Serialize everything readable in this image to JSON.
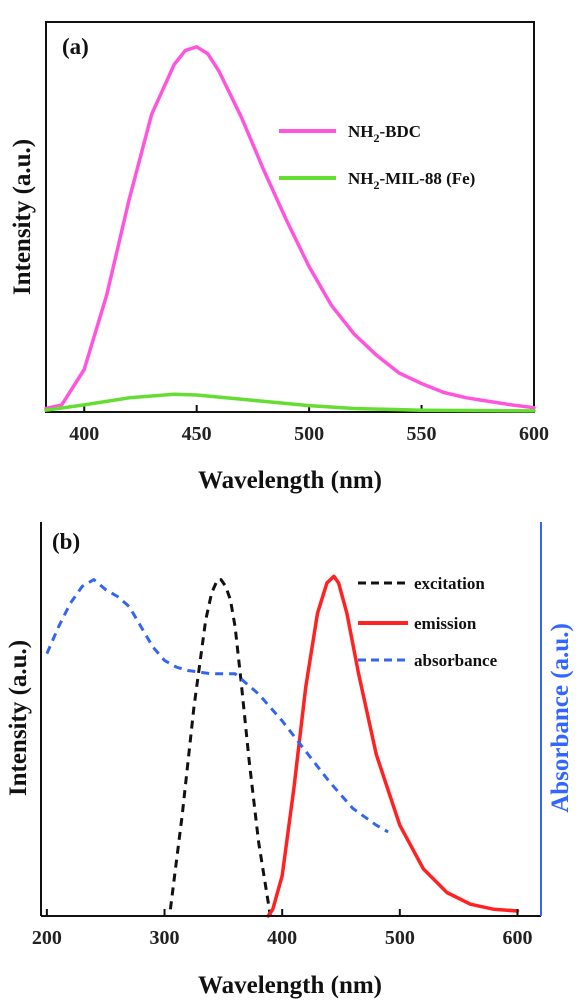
{
  "chart_data": [
    {
      "type": "line",
      "panel_label": "(a)",
      "xlabel": "Wavelength (nm)",
      "ylabel": "Intensity (a.u.)",
      "xlim": [
        383,
        600
      ],
      "x_ticks": [
        400,
        450,
        500,
        550,
        600
      ],
      "y_ticks_shown": false,
      "ylim": [
        0,
        1.1
      ],
      "grid": false,
      "legend_position": "upper-right",
      "series": [
        {
          "name": "NH2-BDC",
          "name_main": "NH",
          "name_sub": "2",
          "name_rest": "-BDC",
          "color": "#ff55dd",
          "x": [
            383,
            390,
            400,
            410,
            420,
            430,
            440,
            445,
            450,
            455,
            460,
            470,
            480,
            490,
            500,
            510,
            520,
            530,
            540,
            550,
            560,
            570,
            580,
            590,
            600
          ],
          "y": [
            0.01,
            0.02,
            0.12,
            0.33,
            0.6,
            0.84,
            0.98,
            1.02,
            1.03,
            1.01,
            0.96,
            0.83,
            0.68,
            0.54,
            0.41,
            0.3,
            0.22,
            0.16,
            0.11,
            0.08,
            0.055,
            0.04,
            0.03,
            0.02,
            0.012
          ]
        },
        {
          "name": "NH2-MIL-88 (Fe)",
          "name_main": "NH",
          "name_sub": "2",
          "name_rest": "-MIL-88 (Fe)",
          "color": "#66dd33",
          "x": [
            383,
            400,
            420,
            440,
            450,
            460,
            480,
            500,
            520,
            550,
            600
          ],
          "y": [
            0.005,
            0.02,
            0.04,
            0.05,
            0.048,
            0.042,
            0.03,
            0.018,
            0.01,
            0.005,
            0.003
          ]
        }
      ]
    },
    {
      "type": "line",
      "panel_label": "(b)",
      "xlabel": "Wavelength (nm)",
      "ylabel": "Intensity (a.u.)",
      "ylabel_right": "Absorbance (a.u.)",
      "ylabel_right_color": "#3366ff",
      "xlim": [
        195,
        620
      ],
      "x_ticks": [
        200,
        300,
        400,
        500,
        600
      ],
      "y_ticks_shown": false,
      "ylim": [
        0,
        1.1
      ],
      "grid": false,
      "legend_position": "upper-right",
      "series": [
        {
          "name": "excitation",
          "color": "#111111",
          "style": "dashed",
          "x": [
            305,
            315,
            325,
            335,
            340,
            345,
            348,
            352,
            356,
            360,
            365,
            372,
            380,
            390
          ],
          "y": [
            0.02,
            0.3,
            0.62,
            0.88,
            0.96,
            1.0,
            1.0,
            0.98,
            0.94,
            0.86,
            0.7,
            0.46,
            0.22,
            0.0
          ]
        },
        {
          "name": "emission",
          "color": "#ff2222",
          "style": "solid",
          "x": [
            388,
            392,
            400,
            410,
            420,
            430,
            438,
            444,
            448,
            455,
            465,
            480,
            500,
            520,
            540,
            560,
            580,
            600
          ],
          "y": [
            0.0,
            0.02,
            0.12,
            0.38,
            0.68,
            0.9,
            0.99,
            1.01,
            0.99,
            0.9,
            0.72,
            0.48,
            0.27,
            0.14,
            0.07,
            0.035,
            0.02,
            0.015
          ]
        },
        {
          "name": "absorbance",
          "color": "#3366ee",
          "style": "dashed",
          "x": [
            200,
            210,
            220,
            230,
            240,
            250,
            260,
            270,
            280,
            290,
            300,
            310,
            320,
            340,
            360,
            380,
            400,
            420,
            440,
            460,
            480,
            490
          ],
          "y": [
            0.78,
            0.86,
            0.93,
            0.98,
            1.0,
            0.97,
            0.95,
            0.92,
            0.86,
            0.8,
            0.76,
            0.74,
            0.73,
            0.72,
            0.72,
            0.66,
            0.58,
            0.49,
            0.4,
            0.32,
            0.27,
            0.25
          ]
        }
      ]
    }
  ]
}
